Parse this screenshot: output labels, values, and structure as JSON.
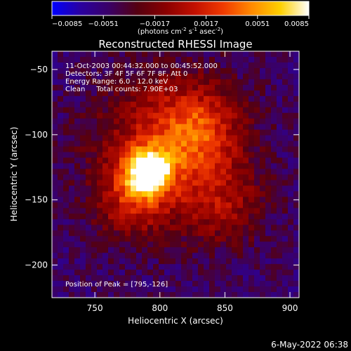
{
  "chart_data": {
    "type": "heatmap",
    "title": "Reconstructed RHESSI Image",
    "xlabel": "Heliocentric X (arcsec)",
    "ylabel": "Heliocentric Y (arcsec)",
    "xlim": [
      717,
      907
    ],
    "ylim": [
      -225,
      -36
    ],
    "x_ticks": [
      750,
      800,
      850,
      900
    ],
    "y_ticks": [
      -50,
      -100,
      -150,
      -200
    ],
    "colorbar": {
      "min": -0.0085,
      "max": 0.0085,
      "ticks": [
        -0.0085,
        -0.0051,
        -0.0017,
        0.0017,
        0.0051,
        0.0085
      ],
      "unit_base": "(photons cm",
      "unit_exp1": "-2",
      "unit_mid": " s",
      "unit_exp2": "-1",
      "unit_mid2": " asec",
      "unit_exp3": "-2",
      "unit_close": ")",
      "colors": [
        "#0000ff",
        "#2a00a0",
        "#3a0066",
        "#550010",
        "#8a0000",
        "#c21000",
        "#f03a00",
        "#ff8a00",
        "#ffd000",
        "#ffffff"
      ]
    },
    "annotations": [
      "11-Oct-2003 00:44:32.000 to 00:45:52.000",
      "Detectors: 3F 4F 5F 6F 7F 8F, Att 0",
      "Energy Range: 6.0 - 12.0 keV",
      "Clean     Total counts: 7.90E+03"
    ],
    "peak_label": "Position of Peak = [795,-126]",
    "peak_position": [
      795,
      -126
    ],
    "source_regions": [
      {
        "center": [
          795,
          -126
        ],
        "radius": 5,
        "level": 1.0
      },
      {
        "center": [
          790,
          -129
        ],
        "radius": 12,
        "level": 0.6
      },
      {
        "center": [
          805,
          -110
        ],
        "radius": 38,
        "level": 0.34
      },
      {
        "center": [
          830,
          -95
        ],
        "radius": 22,
        "level": 0.26
      },
      {
        "center": [
          778,
          -150
        ],
        "radius": 20,
        "level": 0.24
      },
      {
        "center": [
          850,
          -155
        ],
        "radius": 22,
        "level": 0.2
      }
    ]
  },
  "footer": {
    "date": "6-May-2022 06:38"
  }
}
